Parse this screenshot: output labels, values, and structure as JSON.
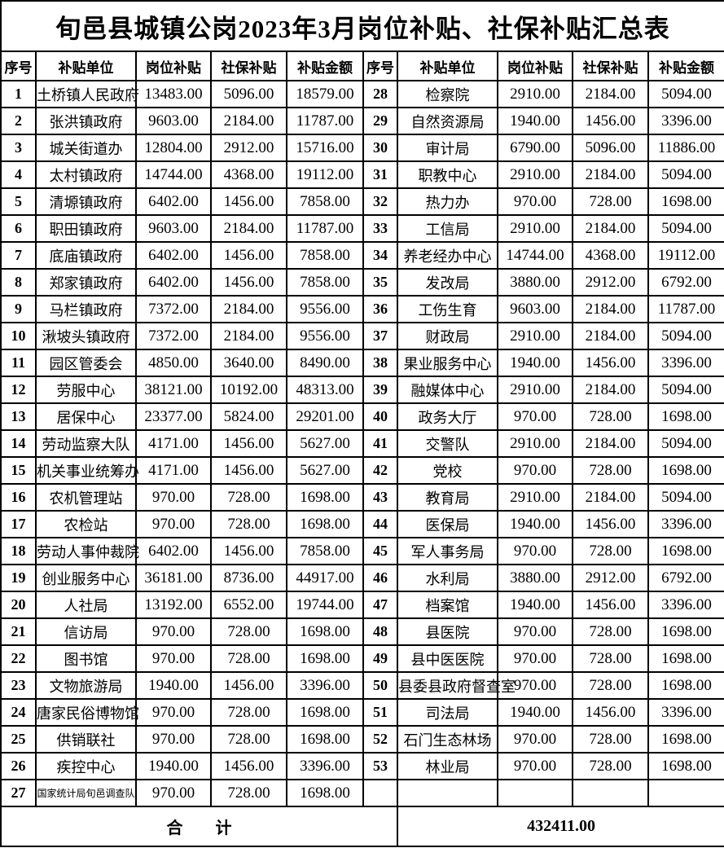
{
  "title": "旬邑县城镇公岗2023年3月岗位补贴、社保补贴汇总表",
  "table": {
    "headers": [
      "序号",
      "补贴单位",
      "岗位补贴",
      "社保补贴",
      "补贴金额"
    ],
    "left_rows": [
      [
        "1",
        "土桥镇人民政府",
        "13483.00",
        "5096.00",
        "18579.00"
      ],
      [
        "2",
        "张洪镇政府",
        "9603.00",
        "2184.00",
        "11787.00"
      ],
      [
        "3",
        "城关街道办",
        "12804.00",
        "2912.00",
        "15716.00"
      ],
      [
        "4",
        "太村镇政府",
        "14744.00",
        "4368.00",
        "19112.00"
      ],
      [
        "5",
        "清塬镇政府",
        "6402.00",
        "1456.00",
        "7858.00"
      ],
      [
        "6",
        "职田镇政府",
        "9603.00",
        "2184.00",
        "11787.00"
      ],
      [
        "7",
        "底庙镇政府",
        "6402.00",
        "1456.00",
        "7858.00"
      ],
      [
        "8",
        "郑家镇政府",
        "6402.00",
        "1456.00",
        "7858.00"
      ],
      [
        "9",
        "马栏镇政府",
        "7372.00",
        "2184.00",
        "9556.00"
      ],
      [
        "10",
        "湫坡头镇政府",
        "7372.00",
        "2184.00",
        "9556.00"
      ],
      [
        "11",
        "园区管委会",
        "4850.00",
        "3640.00",
        "8490.00"
      ],
      [
        "12",
        "劳服中心",
        "38121.00",
        "10192.00",
        "48313.00"
      ],
      [
        "13",
        "居保中心",
        "23377.00",
        "5824.00",
        "29201.00"
      ],
      [
        "14",
        "劳动监察大队",
        "4171.00",
        "1456.00",
        "5627.00"
      ],
      [
        "15",
        "机关事业统筹办",
        "4171.00",
        "1456.00",
        "5627.00"
      ],
      [
        "16",
        "农机管理站",
        "970.00",
        "728.00",
        "1698.00"
      ],
      [
        "17",
        "农检站",
        "970.00",
        "728.00",
        "1698.00"
      ],
      [
        "18",
        "劳动人事仲裁院",
        "6402.00",
        "1456.00",
        "7858.00"
      ],
      [
        "19",
        "创业服务中心",
        "36181.00",
        "8736.00",
        "44917.00"
      ],
      [
        "20",
        "人社局",
        "13192.00",
        "6552.00",
        "19744.00"
      ],
      [
        "21",
        "信访局",
        "970.00",
        "728.00",
        "1698.00"
      ],
      [
        "22",
        "图书馆",
        "970.00",
        "728.00",
        "1698.00"
      ],
      [
        "23",
        "文物旅游局",
        "1940.00",
        "1456.00",
        "3396.00"
      ],
      [
        "24",
        "唐家民俗博物馆",
        "970.00",
        "728.00",
        "1698.00"
      ],
      [
        "25",
        "供销联社",
        "970.00",
        "728.00",
        "1698.00"
      ],
      [
        "26",
        "疾控中心",
        "1940.00",
        "1456.00",
        "3396.00"
      ],
      [
        "27",
        "国家统计局旬邑调查队",
        "970.00",
        "728.00",
        "1698.00"
      ]
    ],
    "right_rows": [
      [
        "28",
        "检察院",
        "2910.00",
        "2184.00",
        "5094.00"
      ],
      [
        "29",
        "自然资源局",
        "1940.00",
        "1456.00",
        "3396.00"
      ],
      [
        "30",
        "审计局",
        "6790.00",
        "5096.00",
        "11886.00"
      ],
      [
        "31",
        "职教中心",
        "2910.00",
        "2184.00",
        "5094.00"
      ],
      [
        "32",
        "热力办",
        "970.00",
        "728.00",
        "1698.00"
      ],
      [
        "33",
        "工信局",
        "2910.00",
        "2184.00",
        "5094.00"
      ],
      [
        "34",
        "养老经办中心",
        "14744.00",
        "4368.00",
        "19112.00"
      ],
      [
        "35",
        "发改局",
        "3880.00",
        "2912.00",
        "6792.00"
      ],
      [
        "36",
        "工伤生育",
        "9603.00",
        "2184.00",
        "11787.00"
      ],
      [
        "37",
        "财政局",
        "2910.00",
        "2184.00",
        "5094.00"
      ],
      [
        "38",
        "果业服务中心",
        "1940.00",
        "1456.00",
        "3396.00"
      ],
      [
        "39",
        "融媒体中心",
        "2910.00",
        "2184.00",
        "5094.00"
      ],
      [
        "40",
        "政务大厅",
        "970.00",
        "728.00",
        "1698.00"
      ],
      [
        "41",
        "交警队",
        "2910.00",
        "2184.00",
        "5094.00"
      ],
      [
        "42",
        "党校",
        "970.00",
        "728.00",
        "1698.00"
      ],
      [
        "43",
        "教育局",
        "2910.00",
        "2184.00",
        "5094.00"
      ],
      [
        "44",
        "医保局",
        "1940.00",
        "1456.00",
        "3396.00"
      ],
      [
        "45",
        "军人事务局",
        "970.00",
        "728.00",
        "1698.00"
      ],
      [
        "46",
        "水利局",
        "3880.00",
        "2912.00",
        "6792.00"
      ],
      [
        "47",
        "档案馆",
        "1940.00",
        "1456.00",
        "3396.00"
      ],
      [
        "48",
        "县医院",
        "970.00",
        "728.00",
        "1698.00"
      ],
      [
        "49",
        "县中医医院",
        "970.00",
        "728.00",
        "1698.00"
      ],
      [
        "50",
        "县委县政府督查室",
        "970.00",
        "728.00",
        "1698.00"
      ],
      [
        "51",
        "司法局",
        "1940.00",
        "1456.00",
        "3396.00"
      ],
      [
        "52",
        "石门生态林场",
        "970.00",
        "728.00",
        "1698.00"
      ],
      [
        "53",
        "林业局",
        "970.00",
        "728.00",
        "1698.00"
      ]
    ]
  },
  "footer": {
    "label": "合　　计",
    "total": "432411.00"
  }
}
